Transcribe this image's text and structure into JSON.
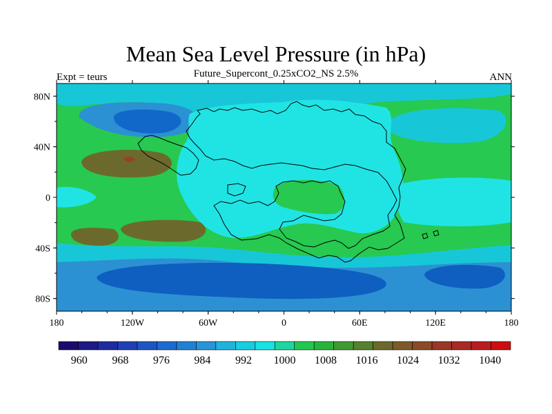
{
  "title": "Mean Sea Level Pressure (in hPa)",
  "subtitle": "Future_Supercont_0.25xCO2_NS 2.5%",
  "left_string": "Expt = teurs",
  "right_string": "ANN",
  "colors": {
    "band_980_990": "#2b91d3",
    "band_990_1000": "#17c7d8",
    "band_1000_1010": "#27c950",
    "low_core": "#1168c8",
    "deep_low": "#0e5fc0",
    "high_core": "#6b6a2c",
    "high_center": "#944428",
    "continent_fill": "#20e4e4",
    "coast_line": "#000000"
  },
  "chart_data": {
    "type": "heatmap",
    "title": "Mean Sea Level Pressure (in hPa)",
    "subtitle": "Future_Supercont_0.25xCO2_NS 2.5%",
    "xlim": [
      -180,
      180
    ],
    "ylim": [
      -90,
      90
    ],
    "x_ticks": [
      {
        "value": -180,
        "label": "180"
      },
      {
        "value": -120,
        "label": "120W"
      },
      {
        "value": -60,
        "label": "60W"
      },
      {
        "value": 0,
        "label": "0"
      },
      {
        "value": 60,
        "label": "60E"
      },
      {
        "value": 120,
        "label": "120E"
      },
      {
        "value": 180,
        "label": "180"
      }
    ],
    "y_ticks": [
      {
        "value": 80,
        "label": "80N"
      },
      {
        "value": 40,
        "label": "40N"
      },
      {
        "value": 0,
        "label": "0"
      },
      {
        "value": -40,
        "label": "40S"
      },
      {
        "value": -80,
        "label": "80S"
      }
    ],
    "colorbar": {
      "levels": [
        956,
        960,
        964,
        968,
        972,
        976,
        980,
        984,
        988,
        992,
        996,
        1000,
        1004,
        1008,
        1012,
        1016,
        1020,
        1024,
        1028,
        1032,
        1036,
        1040,
        1044
      ],
      "labels": [
        {
          "value": 960,
          "label": "960"
        },
        {
          "value": 968,
          "label": "968"
        },
        {
          "value": 976,
          "label": "976"
        },
        {
          "value": 984,
          "label": "984"
        },
        {
          "value": 992,
          "label": "992"
        },
        {
          "value": 1000,
          "label": "1000"
        },
        {
          "value": 1008,
          "label": "1008"
        },
        {
          "value": 1016,
          "label": "1016"
        },
        {
          "value": 1024,
          "label": "1024"
        },
        {
          "value": 1032,
          "label": "1032"
        },
        {
          "value": 1040,
          "label": "1040"
        }
      ],
      "colors": [
        "#1b0a6e",
        "#1d1a86",
        "#1e2b9e",
        "#1f3fb2",
        "#1f55c2",
        "#1d6bcf",
        "#2080d3",
        "#2a95d6",
        "#1fb3dc",
        "#17cde0",
        "#18e2e2",
        "#1ed6a0",
        "#22c750",
        "#29b33d",
        "#3f9a33",
        "#56812e",
        "#6b6a2c",
        "#7c5a2a",
        "#8a4a28",
        "#983826",
        "#a82a24",
        "#bb1c20",
        "#cc0e10"
      ]
    },
    "features": [
      {
        "kind": "low",
        "center": [
          -100,
          65
        ],
        "value": 984
      },
      {
        "kind": "low",
        "center": [
          130,
          60
        ],
        "value": 988
      },
      {
        "kind": "low",
        "center": [
          -30,
          -68
        ],
        "value": 980
      },
      {
        "kind": "low",
        "center": [
          135,
          -62
        ],
        "value": 982
      },
      {
        "kind": "high",
        "center": [
          -150,
          30
        ],
        "value": 1018
      },
      {
        "kind": "high",
        "center": [
          -165,
          -31
        ],
        "value": 1016
      },
      {
        "kind": "high",
        "center": [
          -128,
          -27
        ],
        "value": 1016
      }
    ]
  }
}
